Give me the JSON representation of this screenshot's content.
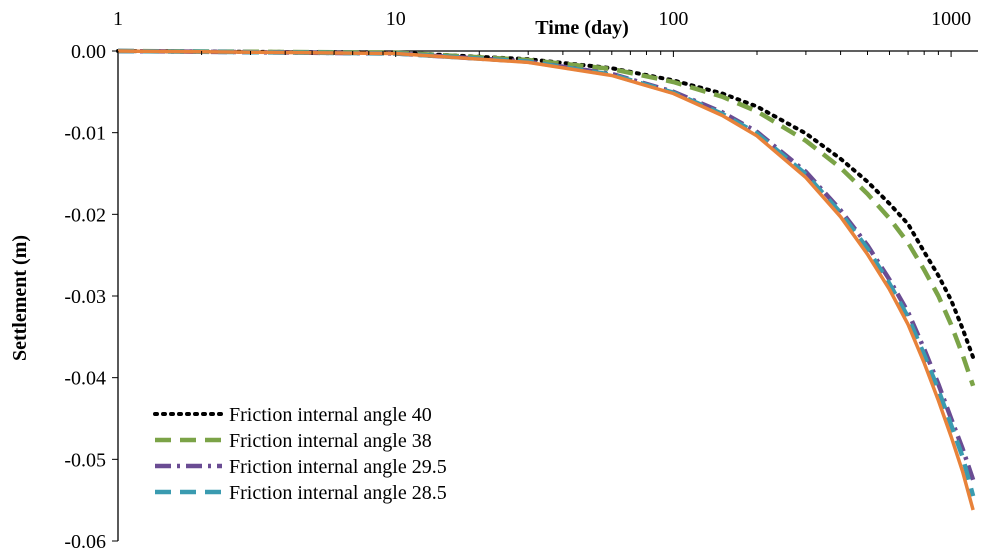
{
  "chart_data": {
    "type": "line",
    "xlabel": "Time (day)",
    "ylabel": "Settlement (m)",
    "xscale": "log",
    "xlim": [
      1,
      1250
    ],
    "ylim": [
      -0.06,
      0.0
    ],
    "x_ticks": [
      1,
      10,
      100,
      1000
    ],
    "x_tick_labels": [
      "1",
      "10",
      "100",
      "1000"
    ],
    "x_axis_position": "top",
    "y_ticks": [
      0.0,
      -0.01,
      -0.02,
      -0.03,
      -0.04,
      -0.05,
      -0.06
    ],
    "y_tick_labels": [
      "0.00",
      "-0.01",
      "-0.02",
      "-0.03",
      "-0.04",
      "-0.05",
      "-0.06"
    ],
    "grid": false,
    "legend_position": "bottom-left",
    "series": [
      {
        "name": "Friction internal angle 40",
        "color": "#000000",
        "style": "dotted",
        "x": [
          1,
          10,
          30,
          60,
          100,
          150,
          200,
          300,
          400,
          500,
          600,
          700,
          800,
          900,
          1000,
          1100,
          1200
        ],
        "y": [
          0,
          -0.0002,
          -0.001,
          -0.0021,
          -0.0036,
          -0.0052,
          -0.0068,
          -0.0101,
          -0.0132,
          -0.016,
          -0.0187,
          -0.0212,
          -0.0246,
          -0.0275,
          -0.0305,
          -0.034,
          -0.0375
        ]
      },
      {
        "name": "Friction internal angle 38",
        "color": "#7BA347",
        "style": "dashed",
        "x": [
          1,
          10,
          30,
          60,
          100,
          150,
          200,
          300,
          400,
          500,
          600,
          700,
          800,
          900,
          1000,
          1100,
          1200
        ],
        "y": [
          0,
          -0.0002,
          -0.0011,
          -0.0022,
          -0.0038,
          -0.0056,
          -0.0074,
          -0.011,
          -0.0143,
          -0.0175,
          -0.0205,
          -0.0235,
          -0.0268,
          -0.03,
          -0.0335,
          -0.0372,
          -0.041
        ]
      },
      {
        "name": "Friction internal angle 29.5",
        "color": "#6A4C93",
        "style": "dashdot",
        "x": [
          1,
          10,
          30,
          60,
          100,
          150,
          200,
          300,
          400,
          500,
          600,
          700,
          800,
          900,
          1000,
          1100,
          1200
        ],
        "y": [
          0,
          -0.0003,
          -0.0013,
          -0.0028,
          -0.005,
          -0.0075,
          -0.0099,
          -0.0148,
          -0.0195,
          -0.0238,
          -0.028,
          -0.032,
          -0.0365,
          -0.0408,
          -0.045,
          -0.0487,
          -0.0525
        ]
      },
      {
        "name": "Friction internal angle 28.5",
        "color": "#3A9BB0",
        "style": "dashed",
        "x": [
          1,
          10,
          30,
          60,
          100,
          150,
          200,
          300,
          400,
          500,
          600,
          700,
          800,
          900,
          1000,
          1100,
          1200
        ],
        "y": [
          0,
          -0.0003,
          -0.0013,
          -0.0029,
          -0.0051,
          -0.0077,
          -0.0101,
          -0.0151,
          -0.0198,
          -0.0242,
          -0.0285,
          -0.0326,
          -0.0372,
          -0.0415,
          -0.0458,
          -0.0497,
          -0.0545
        ]
      },
      {
        "name": "",
        "color": "#E8823A",
        "style": "solid",
        "x": [
          1,
          10,
          30,
          60,
          100,
          150,
          200,
          300,
          400,
          500,
          600,
          700,
          800,
          900,
          1000,
          1100,
          1200
        ],
        "y": [
          0,
          -0.0003,
          -0.0014,
          -0.003,
          -0.0052,
          -0.0079,
          -0.0104,
          -0.0155,
          -0.0203,
          -0.0249,
          -0.0292,
          -0.0335,
          -0.0382,
          -0.0428,
          -0.0472,
          -0.0515,
          -0.0562
        ]
      }
    ]
  }
}
